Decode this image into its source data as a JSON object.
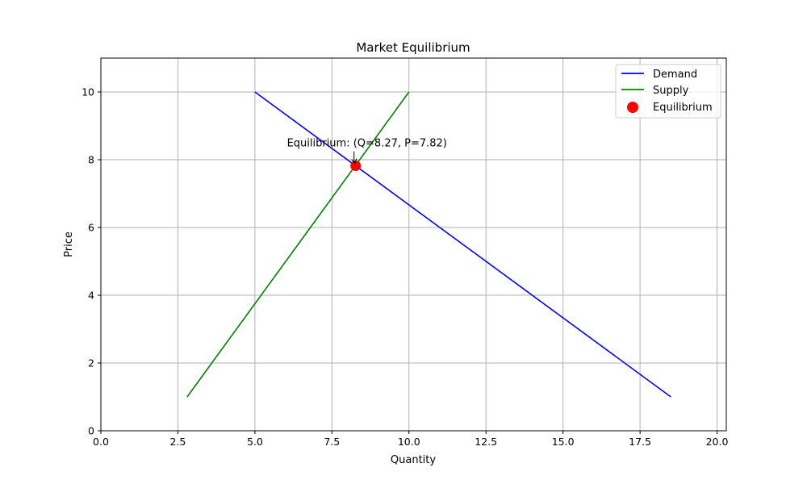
{
  "chart_data": {
    "type": "line",
    "title": "Market Equilibrium",
    "xlabel": "Quantity",
    "ylabel": "Price",
    "xlim": [
      0,
      20.3
    ],
    "ylim": [
      0,
      11
    ],
    "xticks": [
      0,
      2.5,
      5,
      7.5,
      10,
      12.5,
      15,
      17.5,
      20
    ],
    "xtick_labels": [
      "0.0",
      "2.5",
      "5.0",
      "7.5",
      "10.0",
      "12.5",
      "15.0",
      "17.5",
      "20.0"
    ],
    "yticks": [
      0,
      2,
      4,
      6,
      8,
      10
    ],
    "ytick_labels": [
      "0",
      "2",
      "4",
      "6",
      "8",
      "10"
    ],
    "grid": true,
    "legend": "top-right",
    "series": [
      {
        "name": "Demand",
        "kind": "line",
        "color": "#0000ff",
        "x": [
          5,
          18.5
        ],
        "y": [
          10,
          1
        ]
      },
      {
        "name": "Supply",
        "kind": "line",
        "color": "#008000",
        "x": [
          2.8,
          10
        ],
        "y": [
          1,
          10
        ]
      },
      {
        "name": "Equilibrium",
        "kind": "point",
        "color": "#ff0000",
        "x": [
          8.27
        ],
        "y": [
          7.82
        ]
      }
    ],
    "annotation": {
      "text": "Equilibrium: (Q=8.27, P=7.82)",
      "x": 8.27,
      "y": 7.82,
      "text_x": 8.27,
      "text_y": 8.15
    }
  }
}
